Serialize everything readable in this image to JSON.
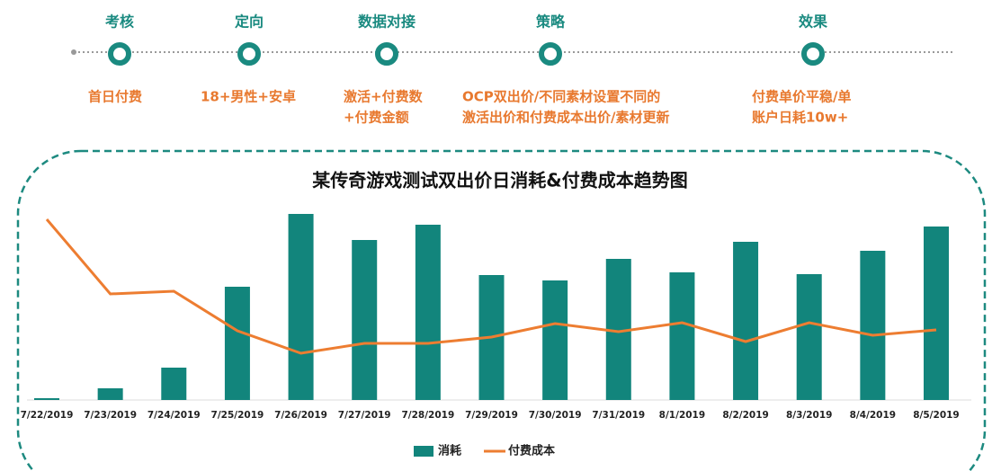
{
  "timeline": {
    "stages": [
      {
        "label": "考核",
        "description": [
          "首日付费"
        ]
      },
      {
        "label": "定向",
        "description": [
          "18+男性+安卓"
        ]
      },
      {
        "label": "数据对接",
        "description": [
          "激活+付费数",
          "+付费金额"
        ]
      },
      {
        "label": "策略",
        "description": [
          "OCP双出价/不同素材设置不同的",
          "激活出价和付费成本出价/素材更新"
        ]
      },
      {
        "label": "效果",
        "description": [
          "付费单价平稳/单",
          "账户日耗10w+"
        ]
      }
    ]
  },
  "chart_data": {
    "type": "bar-line",
    "title": "某传奇游戏测试双出价日消耗&付费成本趋势图",
    "categories": [
      "7/22/2019",
      "7/23/2019",
      "7/24/2019",
      "7/25/2019",
      "7/26/2019",
      "7/27/2019",
      "7/28/2019",
      "7/29/2019",
      "7/30/2019",
      "7/31/2019",
      "8/1/2019",
      "8/2/2019",
      "8/3/2019",
      "8/4/2019",
      "8/5/2019"
    ],
    "series": [
      {
        "name": "消耗",
        "type": "bar",
        "color": "#12857c",
        "values": [
          2,
          13,
          36,
          126,
          207,
          178,
          195,
          139,
          133,
          157,
          142,
          176,
          140,
          166,
          193
        ]
      },
      {
        "name": "付费成本",
        "type": "line",
        "color": "#ed7d31",
        "values": [
          201,
          118,
          121,
          77,
          52,
          63,
          63,
          70,
          85,
          76,
          86,
          65,
          86,
          72,
          78
        ]
      }
    ],
    "ylim": [
      0,
      210
    ]
  }
}
